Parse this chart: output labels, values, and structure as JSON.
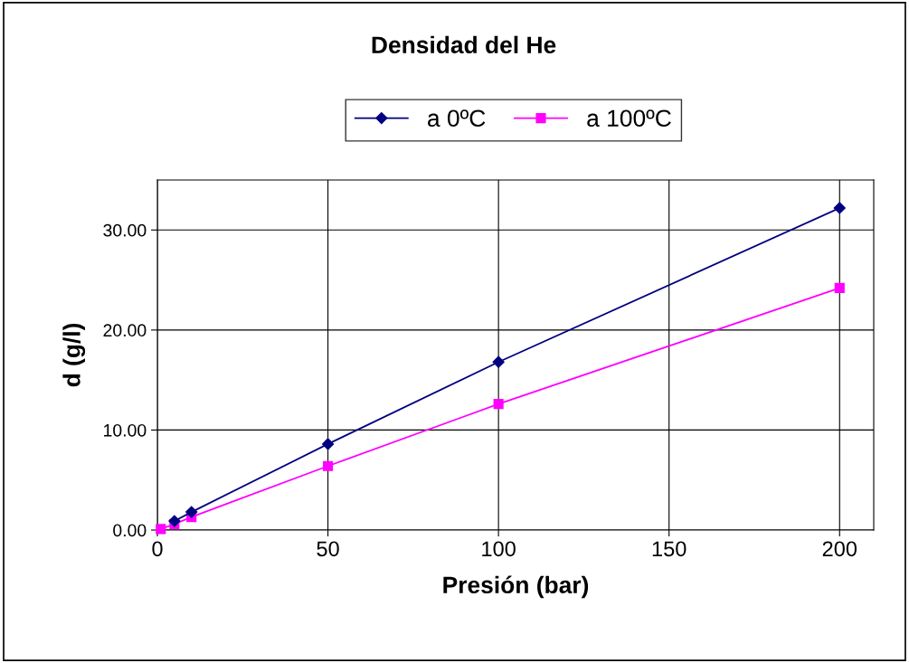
{
  "chart_data": {
    "type": "line",
    "title": "Densidad del He",
    "xlabel": "Presión (bar)",
    "ylabel": "d (g/l)",
    "x": [
      1,
      5,
      10,
      50,
      100,
      200
    ],
    "series": [
      {
        "name": "a 0ºC",
        "color": "#000080",
        "marker": "diamond",
        "values": [
          null,
          0.9,
          1.8,
          8.6,
          16.8,
          32.2
        ]
      },
      {
        "name": "a 100ºC",
        "color": "#ff00ff",
        "marker": "square",
        "values": [
          0.1,
          0.6,
          1.3,
          6.4,
          12.6,
          24.2
        ]
      }
    ],
    "xlim": [
      0,
      210
    ],
    "xticks": [
      0,
      50,
      100,
      150,
      200
    ],
    "ylim": [
      0,
      35
    ],
    "yticks": [
      {
        "value": 0,
        "label": "0.00"
      },
      {
        "value": 10,
        "label": "10.00"
      },
      {
        "value": 20,
        "label": "20.00"
      },
      {
        "value": 30,
        "label": "30.00"
      }
    ],
    "grid": true,
    "legend": "top",
    "line_style": "solid"
  }
}
